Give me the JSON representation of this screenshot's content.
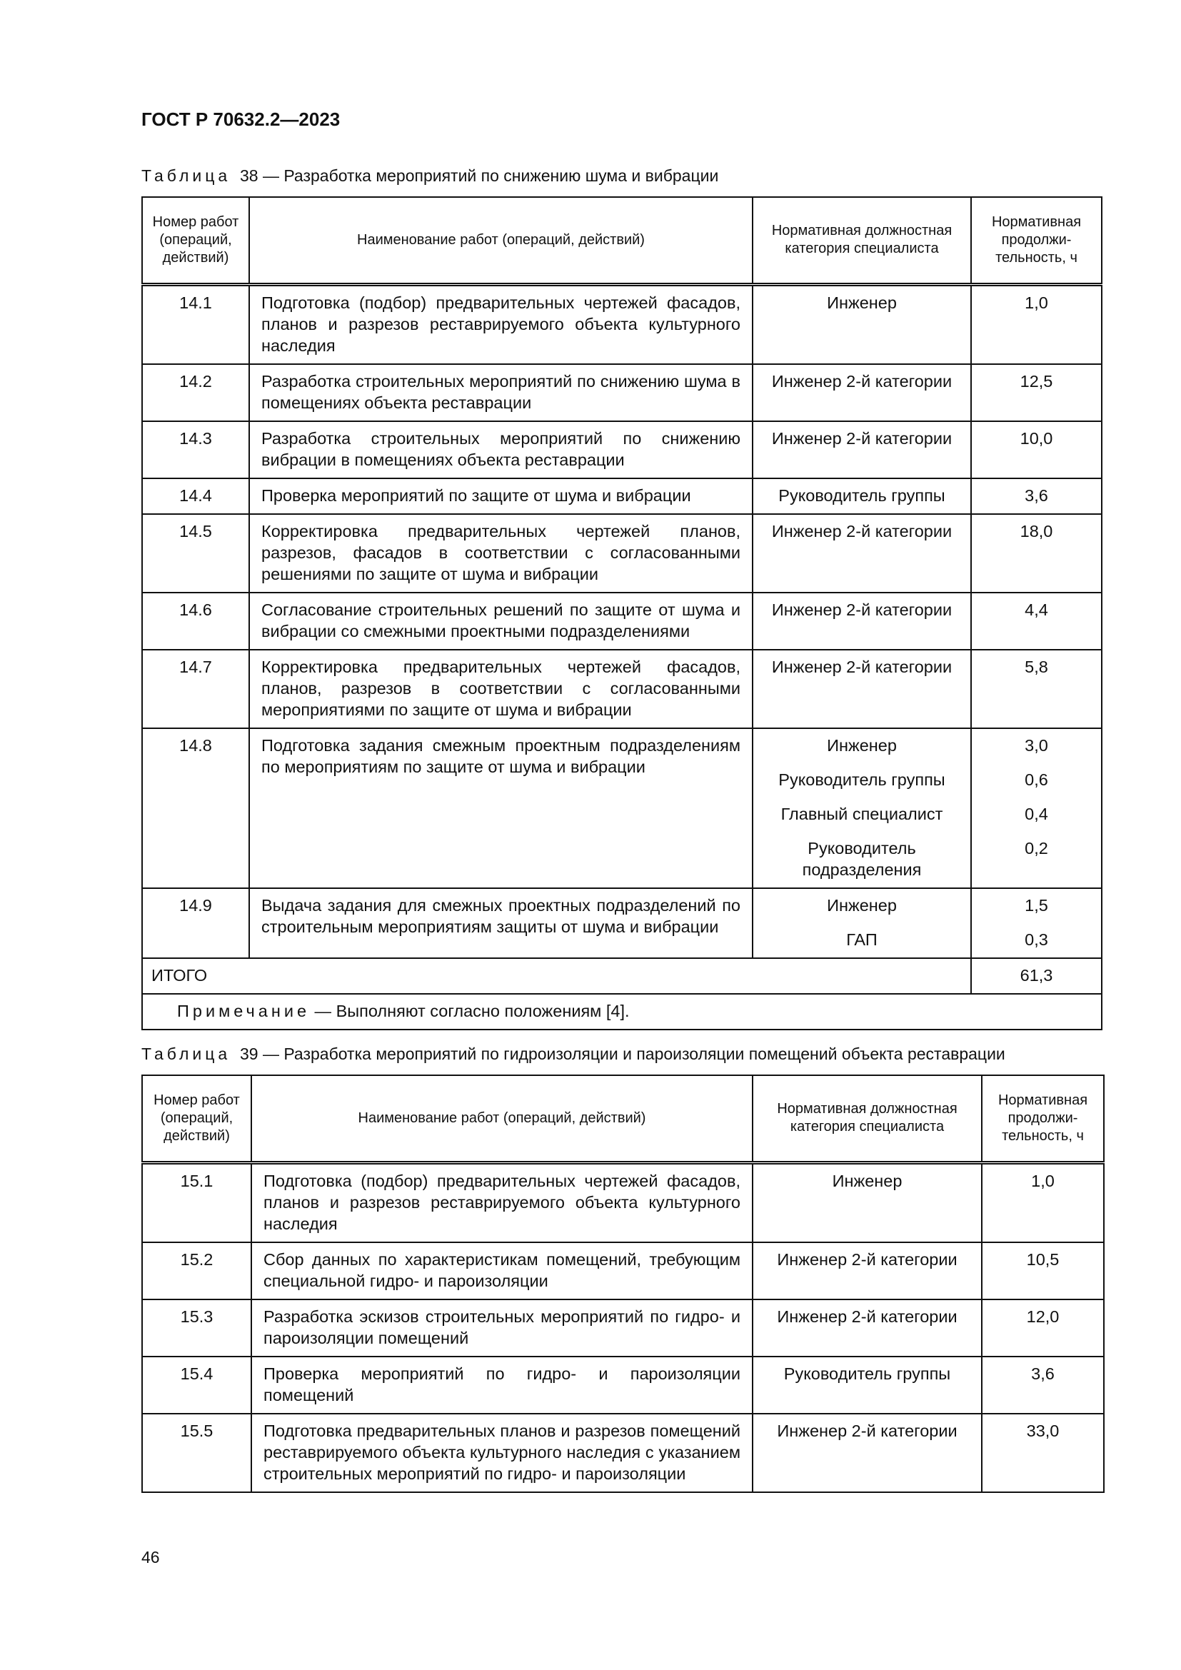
{
  "header": {
    "doc_code": "ГОСТ Р 70632.2—2023"
  },
  "columns": [
    "Номер работ (операций, действий)",
    "Наименование работ (операций, действий)",
    "Нормативная должностная категория специалиста",
    "Нормативная продолжи-тельность, ч"
  ],
  "table38": {
    "caption_prefix": "Таблица",
    "caption_text": "38 — Разработка мероприятий по снижению шума и вибрации",
    "rows": [
      {
        "num": "14.1",
        "name": "Подготовка (подбор) предварительных чертежей фасадов, планов и разрезов реставрируемого объекта культурного наследия",
        "cats": [
          "Инженер"
        ],
        "hours": [
          "1,0"
        ]
      },
      {
        "num": "14.2",
        "name": "Разработка строительных мероприятий по снижению шума в помещениях объекта реставрации",
        "cats": [
          "Инженер 2-й категории"
        ],
        "hours": [
          "12,5"
        ]
      },
      {
        "num": "14.3",
        "name": "Разработка строительных мероприятий по снижению вибрации в помещениях объекта реставрации",
        "cats": [
          "Инженер 2-й категории"
        ],
        "hours": [
          "10,0"
        ]
      },
      {
        "num": "14.4",
        "name": "Проверка мероприятий по защите от шума и вибрации",
        "cats": [
          "Руководитель группы"
        ],
        "hours": [
          "3,6"
        ]
      },
      {
        "num": "14.5",
        "name": "Корректировка предварительных чертежей планов, разрезов, фасадов в соответствии с согласованными решениями по защите от шума и вибрации",
        "cats": [
          "Инженер 2-й категории"
        ],
        "hours": [
          "18,0"
        ]
      },
      {
        "num": "14.6",
        "name": "Согласование строительных решений по защите от шума и вибрации со смежными проектными подразделениями",
        "cats": [
          "Инженер 2-й категории"
        ],
        "hours": [
          "4,4"
        ]
      },
      {
        "num": "14.7",
        "name": "Корректировка предварительных чертежей фасадов, планов, разрезов в соответствии с согласованными мероприятиями по защите от шума и вибрации",
        "cats": [
          "Инженер 2-й категории"
        ],
        "hours": [
          "5,8"
        ]
      },
      {
        "num": "14.8",
        "name": "Подготовка задания смежным проектным подразделениям по мероприятиям по защите от шума и вибрации",
        "cats": [
          "Инженер",
          "Руководитель группы",
          "Главный специалист",
          "Руководитель подразделения"
        ],
        "hours": [
          "3,0",
          "0,6",
          "0,4",
          "0,2"
        ]
      },
      {
        "num": "14.9",
        "name": "Выдача задания для смежных проектных подразделений по строительным мероприятиям защиты от шума и вибрации",
        "cats": [
          "Инженер",
          "ГАП"
        ],
        "hours": [
          "1,5",
          "0,3"
        ]
      }
    ],
    "total_label": "ИТОГО",
    "total_value": "61,3",
    "note_label": "Примечание",
    "note_text": " — Выполняют согласно положениям [4]."
  },
  "table39": {
    "caption_prefix": "Таблица",
    "caption_text": "39 — Разработка мероприятий по гидроизоляции и пароизоляции помещений объекта реставрации",
    "rows": [
      {
        "num": "15.1",
        "name": "Подготовка (подбор) предварительных чертежей фасадов, планов и разрезов реставрируемого объекта культурного наследия",
        "cats": [
          "Инженер"
        ],
        "hours": [
          "1,0"
        ]
      },
      {
        "num": "15.2",
        "name": "Сбор данных по характеристикам помещений, требующим специальной гидро- и пароизоляции",
        "cats": [
          "Инженер 2-й категории"
        ],
        "hours": [
          "10,5"
        ]
      },
      {
        "num": "15.3",
        "name": "Разработка эскизов строительных мероприятий по гидро- и пароизоляции помещений",
        "cats": [
          "Инженер 2-й категории"
        ],
        "hours": [
          "12,0"
        ]
      },
      {
        "num": "15.4",
        "name": "Проверка мероприятий по гидро- и пароизоляции помещений",
        "cats": [
          "Руководитель группы"
        ],
        "hours": [
          "3,6"
        ]
      },
      {
        "num": "15.5",
        "name": "Подготовка предварительных планов и разрезов помещений реставрируемого объекта культурного наследия с указанием строительных мероприятий по гидро- и пароизоляции",
        "cats": [
          "Инженер 2-й категории"
        ],
        "hours": [
          "33,0"
        ]
      }
    ]
  },
  "footer": {
    "page_number": "46"
  }
}
